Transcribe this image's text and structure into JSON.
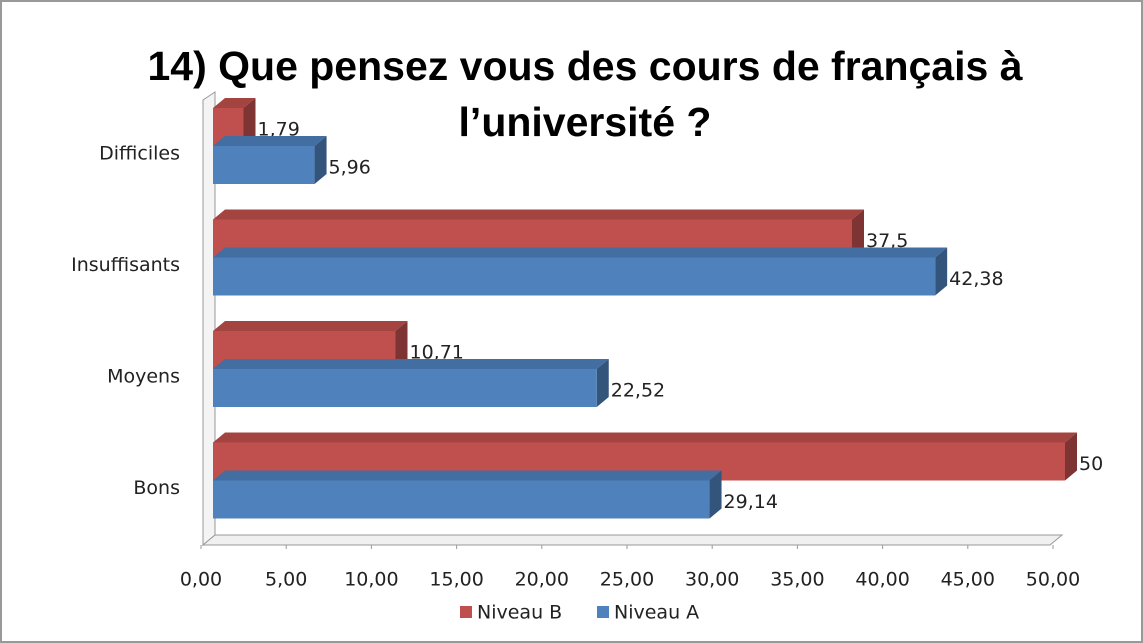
{
  "chart_data": {
    "type": "bar",
    "orientation": "horizontal",
    "title": "14) Que pensez vous des cours de français à l’université ?",
    "categories": [
      "Difficiles",
      "Insuffisants",
      "Moyens",
      "Bons"
    ],
    "series": [
      {
        "name": "Niveau B",
        "color": "#c0504d",
        "values": [
          1.79,
          37.5,
          10.71,
          50
        ],
        "value_labels": [
          "1,79",
          "37,5",
          "10,71",
          "50"
        ]
      },
      {
        "name": "Niveau A",
        "color": "#4f81bd",
        "values": [
          5.96,
          42.38,
          22.52,
          29.14
        ],
        "value_labels": [
          "5,96",
          "42,38",
          "22,52",
          "29,14"
        ]
      }
    ],
    "xlim": [
      0,
      50
    ],
    "xticks": [
      {
        "value": 0,
        "label": "0,00"
      },
      {
        "value": 5,
        "label": "5,00"
      },
      {
        "value": 10,
        "label": "10,00"
      },
      {
        "value": 15,
        "label": "15,00"
      },
      {
        "value": 20,
        "label": "20,00"
      },
      {
        "value": 25,
        "label": "25,00"
      },
      {
        "value": 30,
        "label": "30,00"
      },
      {
        "value": 35,
        "label": "35,00"
      },
      {
        "value": 40,
        "label": "40,00"
      },
      {
        "value": 45,
        "label": "45,00"
      },
      {
        "value": 50,
        "label": "50,00"
      }
    ],
    "legend": "bottom"
  }
}
